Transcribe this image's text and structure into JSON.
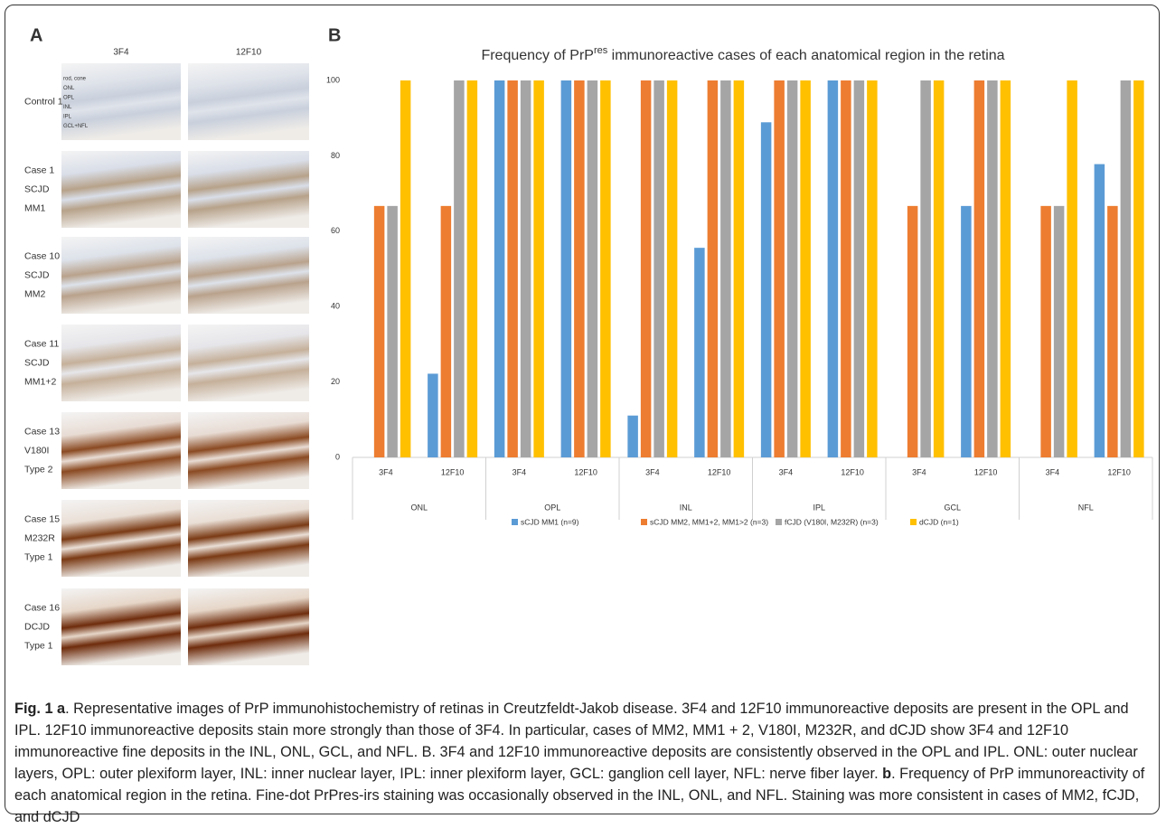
{
  "panel_a": {
    "label": "A",
    "columns": [
      "3F4",
      "12F10"
    ],
    "rows": [
      [
        "Control 1"
      ],
      [
        "Case 1",
        "SCJD",
        "MM1"
      ],
      [
        "Case 10",
        "SCJD",
        "MM2"
      ],
      [
        "Case 11",
        "SCJD",
        "MM1+2"
      ],
      [
        "Case 13",
        "V180I",
        "Type 2"
      ],
      [
        "Case 15",
        "M232R",
        "Type 1"
      ],
      [
        "Case 16",
        "DCJD",
        "Type 1"
      ]
    ],
    "layer_labels": [
      "rod, cone",
      "ONL",
      "OPL",
      "INL",
      "IPL",
      "GCL+NFL"
    ]
  },
  "chart_data": {
    "type": "bar",
    "panel_label": "B",
    "title": [
      "Frequency of PrP",
      "res",
      " immunoreactive cases of each anatomical region in the retina"
    ],
    "categories": [
      "3F4",
      "12F10",
      "3F4",
      "12F10",
      "3F4",
      "12F10",
      "3F4",
      "12F10",
      "3F4",
      "12F10",
      "3F4",
      "12F10"
    ],
    "groups": [
      "ONL",
      "OPL",
      "INL",
      "IPL",
      "GCL",
      "NFL"
    ],
    "series": [
      {
        "name": "sCJD MM1 (n=9)",
        "color": "#5b9bd5",
        "values": [
          0,
          22.2,
          100,
          100,
          11.1,
          55.6,
          88.9,
          100,
          0,
          66.7,
          0,
          77.8
        ]
      },
      {
        "name": "sCJD MM2, MM1+2, MM1>2 (n=3)",
        "color": "#ed7d31",
        "values": [
          66.7,
          66.7,
          100,
          100,
          100,
          100,
          100,
          100,
          66.7,
          100,
          66.7,
          66.7
        ]
      },
      {
        "name": "fCJD (V180I, M232R) (n=3)",
        "color": "#a5a5a5",
        "values": [
          66.7,
          100,
          100,
          100,
          100,
          100,
          100,
          100,
          100,
          100,
          66.7,
          100
        ]
      },
      {
        "name": "dCJD (n=1)",
        "color": "#ffc000",
        "values": [
          100,
          100,
          100,
          100,
          100,
          100,
          100,
          100,
          100,
          100,
          100,
          100
        ]
      }
    ],
    "ylim": [
      0,
      100
    ],
    "yticks": [
      0,
      20,
      40,
      60,
      80,
      100
    ],
    "grid": false,
    "legend": "bottom"
  },
  "caption": [
    {
      "text": "Fig. 1 ",
      "bold": true
    },
    {
      "text": "a",
      "bold": true
    },
    {
      "text": ". Representative images of PrP immunohistochemistry of retinas in Creutzfeldt-Jakob disease. 3F4 and 12F10 immunoreactive deposits are present in the OPL and IPL. 12F10 immunoreactive deposits stain more strongly than those of 3F4. In particular, cases of MM2, MM1 + 2, V180I, M232R, and dCJD show 3F4 and 12F10 immunoreactive fine deposits in the INL, ONL, GCL, and NFL. B. 3F4 and 12F10 immunoreactive deposits are consistently observed in the OPL and IPL. ONL: outer nuclear layers, OPL: outer plexiform layer, INL: inner nuclear layer, IPL: inner plexiform layer, GCL: ganglion cell layer, NFL: nerve fiber layer. "
    },
    {
      "text": "b",
      "bold": true
    },
    {
      "text": ". Frequency of PrP immunoreactivity of each anatomical region in the retina. Fine-dot PrPres-irs staining was occasionally observed in the INL, ONL, and NFL. Staining was more consistent in cases of MM2, fCJD, and dCJD"
    }
  ]
}
